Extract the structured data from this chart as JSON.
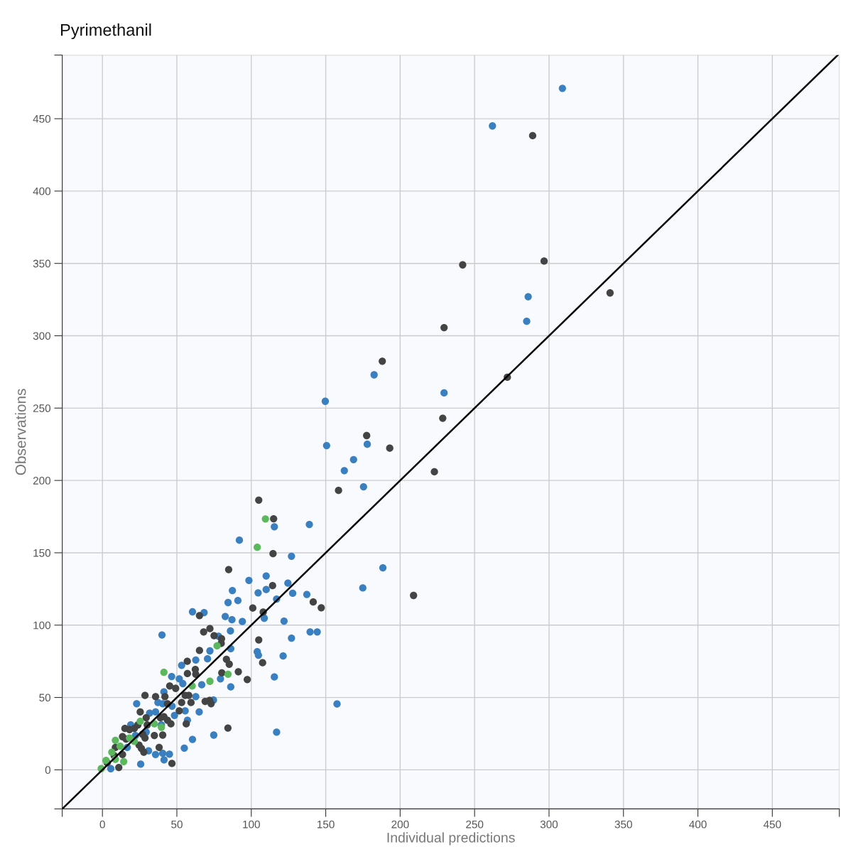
{
  "chart_data": {
    "type": "scatter",
    "title": "Pyrimethanil",
    "xlabel": "Individual predictions",
    "ylabel": "Observations",
    "xlim": [
      -27,
      495
    ],
    "ylim": [
      -27,
      494
    ],
    "xticks": [
      {
        "value": -27,
        "label": null
      },
      0,
      50,
      100,
      150,
      200,
      250,
      300,
      350,
      400,
      450,
      {
        "value": 495,
        "label": null
      }
    ],
    "yticks": [
      {
        "value": -27,
        "label": null
      },
      0,
      50,
      100,
      150,
      200,
      250,
      300,
      350,
      400,
      450,
      {
        "value": 494,
        "label": null
      }
    ],
    "grid": true,
    "marker": "circle",
    "series": [
      {
        "color": "#3a7fbf",
        "x": [
          309,
          262,
          286,
          285,
          229.5,
          182.5,
          149.7,
          150.6,
          177.9,
          168.7,
          162.5,
          175.4,
          139,
          115.5,
          92,
          127,
          188.4,
          174.9,
          110,
          98.4,
          87.3,
          104.6,
          110,
          124.6,
          127.8,
          137.3,
          117,
          84.4,
          91,
          60.5,
          68.3,
          108.7,
          82.5,
          87,
          94,
          122,
          40,
          86,
          139.5,
          144.3,
          78,
          127,
          86.2,
          72.2,
          104,
          104.8,
          121.4,
          62.7,
          70.6,
          53.2,
          46.5,
          115.5,
          51.6,
          157.6,
          117,
          74.8,
          60.5,
          55,
          45,
          41.4,
          25.7,
          86.2,
          54,
          66.7,
          79.3,
          23,
          41.3,
          37.3,
          40.5,
          46.8,
          62.7,
          74.6,
          65,
          31.7,
          35.7,
          48.4,
          55.6,
          57.1,
          39.6,
          19,
          22.2,
          29.4,
          31,
          35.7,
          40.5,
          16.7,
          5.6
        ],
        "values": [
          471,
          445,
          327,
          310,
          260.5,
          273,
          254.7,
          224.1,
          225,
          214.4,
          206.8,
          195.6,
          169.6,
          168,
          158.7,
          147.6,
          139.6,
          125.7,
          134,
          130.9,
          123.9,
          122.3,
          124.6,
          129,
          122,
          121.2,
          118,
          115.6,
          117,
          109.2,
          108.7,
          104.8,
          106,
          103.7,
          102.5,
          102.8,
          93.2,
          96,
          95.3,
          95.3,
          92.3,
          91,
          83.7,
          82.2,
          81.6,
          79.2,
          78.7,
          75.9,
          76.7,
          72.2,
          64.5,
          64.2,
          62.9,
          45.5,
          26,
          24,
          21,
          15,
          10.8,
          6.9,
          3.9,
          57.3,
          59.6,
          58.8,
          62.9,
          45.7,
          53.9,
          46.5,
          45.7,
          44,
          50.6,
          48.2,
          40,
          39.2,
          40,
          37.6,
          40.8,
          34.3,
          31,
          31,
          23.7,
          26.1,
          13.1,
          10.6,
          11.4,
          15.5,
          0.8
        ]
      },
      {
        "color": "#444444",
        "x": [
          289,
          242,
          296.7,
          229.5,
          272,
          341,
          188,
          228.6,
          177.5,
          193,
          223,
          158.6,
          209,
          105,
          115,
          114.6,
          84.8,
          114.3,
          141.6,
          147,
          101,
          65.2,
          108,
          72.2,
          68,
          75,
          80,
          105,
          79.8,
          65.2,
          107.6,
          57,
          83.3,
          85.2,
          62.4,
          91.3,
          57.1,
          62.7,
          80.2,
          97.3,
          84.3,
          46.7,
          72,
          45.2,
          49.2,
          55.6,
          28.6,
          35.7,
          42,
          43.7,
          53.2,
          58,
          59.5,
          69,
          73,
          25.4,
          29.4,
          30.1,
          38.9,
          41.3,
          43.7,
          46,
          40.5,
          34.9,
          51.6,
          56.3,
          15.1,
          18.2,
          21.4,
          23.8,
          13.5,
          15.9,
          27,
          28.6,
          24.6,
          26.2,
          27.8,
          38.1,
          8.7,
          13.5,
          11,
          3.2,
          7.9
        ],
        "values": [
          438.3,
          349,
          351.6,
          305.6,
          271.3,
          329.6,
          282.4,
          243,
          231,
          222.3,
          206,
          193.1,
          120.5,
          186.4,
          173.5,
          149.4,
          138.4,
          127.3,
          116,
          112,
          111.8,
          106.6,
          109,
          97.6,
          95.3,
          92.7,
          90.6,
          89.8,
          87.4,
          82.5,
          74,
          75,
          76.4,
          73,
          69.4,
          67.8,
          66.5,
          66.1,
          67,
          62.4,
          28.9,
          4.4,
          48,
          58,
          56.3,
          51.4,
          51.4,
          50.6,
          50.6,
          45.7,
          46.5,
          51.4,
          46.5,
          47.3,
          45.7,
          40,
          36,
          31,
          36,
          36.7,
          34.3,
          31.8,
          24,
          23.7,
          40.8,
          31.8,
          28.6,
          27.8,
          28.6,
          31,
          22.9,
          21.2,
          24.5,
          22,
          17.1,
          14.7,
          12.2,
          15.5,
          15.5,
          10.6,
          1.6,
          4.9,
          9.8
        ]
      },
      {
        "color": "#5cb85c",
        "x": [
          109.5,
          104,
          77,
          41.3,
          84.4,
          60.3,
          72.2,
          25.4,
          34.9,
          39.6,
          18.2,
          21.4,
          11.9,
          8.7,
          6.3,
          14.3,
          2.4,
          -0.8,
          8.7
        ],
        "values": [
          173.4,
          153.8,
          85.7,
          67.4,
          66.1,
          58,
          61.2,
          33.5,
          31.8,
          29.4,
          22,
          19.6,
          16.3,
          20.4,
          12.2,
          5.7,
          6.5,
          0.8,
          7.3
        ]
      },
      {
        "type": "line",
        "color": "#000000",
        "line_style": "solid",
        "marker": "none",
        "x": [
          -27,
          494
        ],
        "values": [
          -27,
          494
        ]
      }
    ]
  }
}
